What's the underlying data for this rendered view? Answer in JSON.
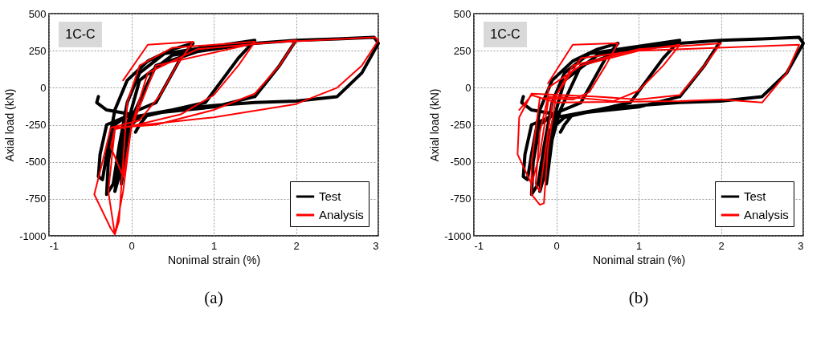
{
  "chart_data": [
    {
      "type": "line",
      "xlabel": "Nonimal strain (%)",
      "ylabel": "Axial load (kN)",
      "xlim": [
        -1,
        3
      ],
      "xticks": [
        -1,
        0,
        1,
        2,
        3
      ],
      "ylim": [
        -1000,
        500
      ],
      "yticks": [
        -1000,
        -750,
        -500,
        -250,
        0,
        250,
        500
      ],
      "grid": true,
      "legend": "bottom right",
      "annotations": [
        "1C-C",
        "(a)"
      ],
      "series": [
        {
          "name": "Test",
          "color": "#000000",
          "x": [
            -0.4,
            -0.42,
            -0.3,
            0.0,
            -0.3,
            -0.38,
            -0.4,
            -0.35,
            -0.3,
            -0.2,
            -0.05,
            0.2,
            0.5,
            0.75,
            0.6,
            0.45,
            0.3,
            0.0,
            -0.2,
            -0.28,
            -0.3,
            -0.22,
            -0.15,
            -0.05,
            0.1,
            0.4,
            1.0,
            1.5,
            1.3,
            1.1,
            0.9,
            0.5,
            0.1,
            -0.1,
            -0.2,
            -0.15,
            -0.05,
            0.1,
            0.5,
            1.0,
            1.5,
            2.0,
            1.8,
            1.5,
            1.0,
            0.3,
            0.0,
            -0.1,
            -0.12,
            -0.05,
            0.05,
            0.3,
            1.0,
            2.0,
            2.5,
            2.95,
            3.0,
            2.8,
            2.5,
            2.0,
            1.5,
            1.0,
            0.5,
            0.2,
            0.1,
            0.05
          ],
          "values": [
            -60,
            -100,
            -150,
            -180,
            -250,
            -450,
            -600,
            -620,
            -450,
            -150,
            50,
            180,
            260,
            300,
            200,
            50,
            -100,
            -170,
            -250,
            -500,
            -720,
            -650,
            -400,
            -100,
            100,
            230,
            280,
            320,
            200,
            50,
            -100,
            -150,
            -200,
            -300,
            -700,
            -600,
            -250,
            50,
            220,
            260,
            300,
            320,
            150,
            -60,
            -130,
            -170,
            -200,
            -400,
            -650,
            -350,
            -150,
            150,
            280,
            320,
            330,
            340,
            300,
            100,
            -60,
            -90,
            -100,
            -120,
            -150,
            -180,
            -250,
            -300
          ]
        },
        {
          "name": "Analysis",
          "color": "#ff0000",
          "x": [
            -0.1,
            0.2,
            0.75,
            0.55,
            0.35,
            0.1,
            -0.25,
            -0.35,
            -0.45,
            -0.25,
            -0.2,
            -0.15,
            -0.1,
            -0.05,
            0.1,
            0.5,
            1.5,
            1.3,
            1.0,
            0.6,
            0.0,
            -0.2,
            -0.28,
            -0.2,
            -0.1,
            0.0,
            0.2,
            0.8,
            2.0,
            1.8,
            1.5,
            1.0,
            0.3,
            -0.2,
            -0.25,
            -0.1,
            0.0,
            0.3,
            1.5,
            2.96,
            3.0,
            2.8,
            2.5,
            2.0,
            1.0,
            0.0,
            -0.2
          ],
          "values": [
            50,
            290,
            310,
            150,
            -50,
            -220,
            -270,
            -500,
            -720,
            -950,
            -990,
            -900,
            -500,
            -100,
            150,
            270,
            310,
            150,
            -50,
            -180,
            -260,
            -280,
            -700,
            -990,
            -700,
            -260,
            100,
            260,
            320,
            150,
            -40,
            -150,
            -250,
            -270,
            -400,
            -600,
            -270,
            150,
            300,
            340,
            320,
            150,
            0,
            -110,
            -200,
            -260,
            -270
          ]
        }
      ]
    },
    {
      "type": "line",
      "xlabel": "Nonimal strain (%)",
      "ylabel": "Axial load (kN)",
      "xlim": [
        -1,
        3
      ],
      "xticks": [
        -1,
        0,
        1,
        2,
        3
      ],
      "ylim": [
        -1000,
        500
      ],
      "yticks": [
        -1000,
        -750,
        -500,
        -250,
        0,
        250,
        500
      ],
      "grid": true,
      "legend": "bottom right",
      "annotations": [
        "1C-C",
        "(b)"
      ],
      "series": [
        {
          "name": "Test",
          "color": "#000000",
          "x": [
            -0.4,
            -0.42,
            -0.3,
            0.0,
            -0.3,
            -0.38,
            -0.4,
            -0.35,
            -0.3,
            -0.2,
            -0.05,
            0.2,
            0.5,
            0.75,
            0.6,
            0.45,
            0.3,
            0.0,
            -0.2,
            -0.28,
            -0.3,
            -0.22,
            -0.15,
            -0.05,
            0.1,
            0.4,
            1.0,
            1.5,
            1.3,
            1.1,
            0.9,
            0.5,
            0.1,
            -0.1,
            -0.2,
            -0.15,
            -0.05,
            0.1,
            0.5,
            1.0,
            1.5,
            2.0,
            1.8,
            1.5,
            1.0,
            0.3,
            0.0,
            -0.1,
            -0.12,
            -0.05,
            0.05,
            0.3,
            1.0,
            2.0,
            2.5,
            2.95,
            3.0,
            2.8,
            2.5,
            2.0,
            1.5,
            1.0,
            0.5,
            0.2,
            0.1,
            0.05
          ],
          "values": [
            -60,
            -100,
            -150,
            -180,
            -250,
            -450,
            -600,
            -620,
            -450,
            -150,
            50,
            180,
            260,
            300,
            200,
            50,
            -100,
            -170,
            -250,
            -500,
            -720,
            -650,
            -400,
            -100,
            100,
            230,
            280,
            320,
            200,
            50,
            -100,
            -150,
            -200,
            -300,
            -700,
            -600,
            -250,
            50,
            220,
            260,
            300,
            320,
            150,
            -60,
            -130,
            -170,
            -200,
            -400,
            -650,
            -350,
            -150,
            150,
            280,
            320,
            330,
            340,
            300,
            100,
            -60,
            -90,
            -100,
            -120,
            -150,
            -180,
            -250,
            -300
          ]
        },
        {
          "name": "Analysis",
          "color": "#ff0000",
          "x": [
            -0.1,
            0.2,
            0.75,
            0.6,
            0.4,
            0.2,
            -0.2,
            -0.3,
            -0.3,
            -0.2,
            -0.15,
            -0.1,
            0.0,
            0.3,
            1.5,
            1.3,
            1.0,
            0.7,
            0.3,
            -0.1,
            -0.2,
            -0.25,
            -0.2,
            -0.05,
            0.2,
            1.0,
            2.0,
            1.8,
            1.5,
            1.0,
            0.5,
            -0.3,
            -0.45,
            -0.47,
            -0.3,
            -0.2,
            -0.1,
            -0.1,
            0.3,
            1.0,
            2.95,
            2.8,
            2.5,
            2.0,
            1.5,
            0.0,
            -0.3,
            -0.45
          ],
          "values": [
            30,
            290,
            300,
            150,
            -30,
            -80,
            -70,
            -500,
            -720,
            -790,
            -780,
            -400,
            -50,
            200,
            290,
            150,
            -20,
            -90,
            -70,
            -60,
            -300,
            -650,
            -700,
            -100,
            150,
            260,
            300,
            150,
            -50,
            -80,
            -60,
            -40,
            -200,
            -450,
            -650,
            -450,
            -100,
            0,
            150,
            250,
            290,
            100,
            -100,
            -80,
            -90,
            -100,
            -50,
            -150
          ]
        }
      ]
    }
  ]
}
